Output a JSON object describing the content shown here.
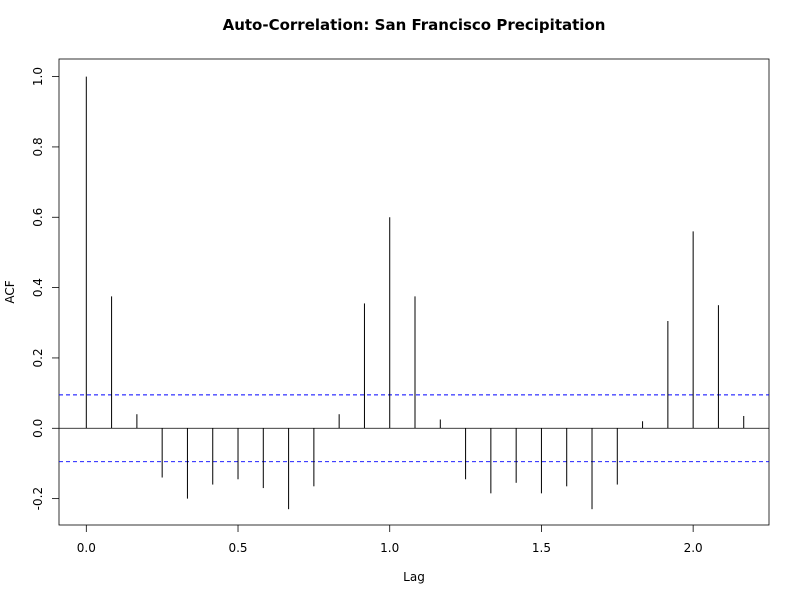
{
  "chart_data": {
    "type": "bar",
    "title": "Auto-Correlation: San Francisco Precipitation",
    "xlabel": "Lag",
    "ylabel": "ACF",
    "xlim": [
      -0.09,
      2.25
    ],
    "ylim": [
      -0.275,
      1.05
    ],
    "x_ticks": [
      "0.0",
      "0.5",
      "1.0",
      "1.5",
      "2.0"
    ],
    "y_ticks": [
      "-0.2",
      "0.0",
      "0.2",
      "0.4",
      "0.6",
      "0.8",
      "1.0"
    ],
    "confidence_band": 0.095,
    "colors": {
      "bars": "#000000",
      "band": "#0000ff",
      "zero_line": "#000000"
    },
    "grid": false,
    "x": [
      0.0,
      0.0833,
      0.1667,
      0.25,
      0.3333,
      0.4167,
      0.5,
      0.5833,
      0.6667,
      0.75,
      0.8333,
      0.9167,
      1.0,
      1.0833,
      1.1667,
      1.25,
      1.3333,
      1.4167,
      1.5,
      1.5833,
      1.6667,
      1.75,
      1.8333,
      1.9167,
      2.0,
      2.0833,
      2.1667
    ],
    "values": [
      1.0,
      0.375,
      0.04,
      -0.14,
      -0.2,
      -0.16,
      -0.145,
      -0.17,
      -0.23,
      -0.165,
      0.04,
      0.355,
      0.6,
      0.375,
      0.025,
      -0.145,
      -0.185,
      -0.155,
      -0.185,
      -0.165,
      -0.23,
      -0.16,
      0.02,
      0.305,
      0.56,
      0.35,
      0.035
    ]
  }
}
